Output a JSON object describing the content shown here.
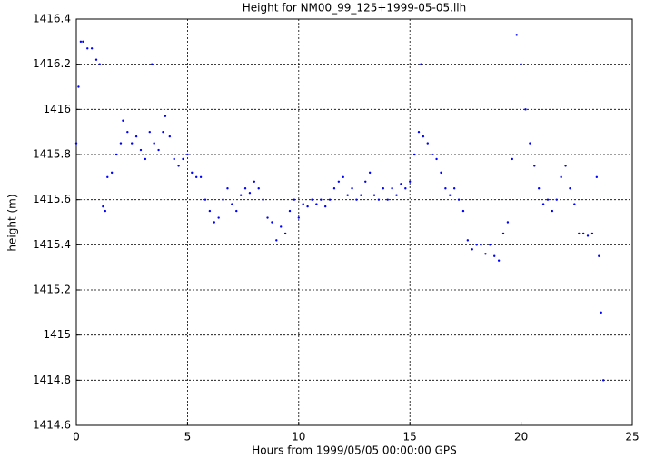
{
  "chart_data": {
    "type": "scatter",
    "title": "Height for NM00_99_125+1999-05-05.llh",
    "x_label": "Hours from 1999/05/05 00:00:00 GPS",
    "y_label": "height (m)",
    "xlim": [
      0,
      25
    ],
    "xticks": [
      0,
      5,
      10,
      15,
      20,
      25
    ],
    "ylim": [
      1414.6,
      1416.4
    ],
    "yticks": [
      1414.6,
      1414.8,
      1415,
      1415.2,
      1415.4,
      1415.6,
      1415.8,
      1416,
      1416.2,
      1416.4
    ],
    "grid": true,
    "series": [
      {
        "color": "#0000ff",
        "x": [
          0.0,
          0.1,
          0.2,
          0.3,
          0.5,
          0.7,
          0.9,
          1.05,
          1.2,
          1.3,
          1.4,
          1.6,
          1.8,
          2.0,
          2.1,
          2.3,
          2.5,
          2.7,
          2.9,
          3.1,
          3.3,
          3.4,
          3.5,
          3.7,
          3.9,
          4.0,
          4.2,
          4.4,
          4.6,
          4.8,
          5.0,
          5.2,
          5.4,
          5.6,
          5.8,
          6.0,
          6.2,
          6.4,
          6.6,
          6.8,
          7.0,
          7.2,
          7.4,
          7.6,
          7.8,
          8.0,
          8.2,
          8.4,
          8.6,
          8.8,
          9.0,
          9.2,
          9.4,
          9.6,
          9.8,
          10.0,
          10.2,
          10.4,
          10.6,
          10.8,
          11.0,
          11.2,
          11.4,
          11.6,
          11.8,
          12.0,
          12.2,
          12.4,
          12.6,
          12.8,
          13.0,
          13.2,
          13.4,
          13.6,
          13.8,
          14.0,
          14.2,
          14.4,
          14.6,
          14.8,
          15.0,
          15.2,
          15.4,
          15.5,
          15.6,
          15.8,
          16.0,
          16.2,
          16.4,
          16.6,
          16.8,
          17.0,
          17.2,
          17.4,
          17.6,
          17.8,
          18.0,
          18.2,
          18.4,
          18.6,
          18.8,
          19.0,
          19.2,
          19.4,
          19.6,
          19.8,
          20.0,
          20.2,
          20.4,
          20.6,
          20.8,
          21.0,
          21.2,
          21.4,
          21.6,
          21.8,
          22.0,
          22.2,
          22.4,
          22.6,
          22.8,
          23.0,
          23.2,
          23.4,
          23.5,
          23.6,
          23.7
        ],
        "values": [
          1415.85,
          1416.1,
          1416.3,
          1416.3,
          1416.27,
          1416.27,
          1416.22,
          1416.2,
          1415.57,
          1415.55,
          1415.7,
          1415.72,
          1415.8,
          1415.85,
          1415.95,
          1415.9,
          1415.85,
          1415.88,
          1415.82,
          1415.78,
          1415.9,
          1416.2,
          1415.85,
          1415.82,
          1415.9,
          1415.97,
          1415.88,
          1415.78,
          1415.75,
          1415.78,
          1415.8,
          1415.72,
          1415.7,
          1415.7,
          1415.6,
          1415.55,
          1415.5,
          1415.52,
          1415.6,
          1415.65,
          1415.58,
          1415.55,
          1415.62,
          1415.65,
          1415.63,
          1415.68,
          1415.65,
          1415.6,
          1415.52,
          1415.5,
          1415.42,
          1415.48,
          1415.45,
          1415.55,
          1415.6,
          1415.52,
          1415.58,
          1415.57,
          1415.6,
          1415.58,
          1415.6,
          1415.57,
          1415.6,
          1415.65,
          1415.68,
          1415.7,
          1415.62,
          1415.65,
          1415.6,
          1415.62,
          1415.68,
          1415.72,
          1415.62,
          1415.6,
          1415.65,
          1415.6,
          1415.65,
          1415.62,
          1415.67,
          1415.65,
          1415.68,
          1415.8,
          1415.9,
          1416.2,
          1415.88,
          1415.85,
          1415.8,
          1415.78,
          1415.72,
          1415.65,
          1415.62,
          1415.65,
          1415.6,
          1415.55,
          1415.42,
          1415.38,
          1415.4,
          1415.4,
          1415.36,
          1415.4,
          1415.35,
          1415.33,
          1415.45,
          1415.5,
          1415.78,
          1416.33,
          1416.2,
          1416.0,
          1415.85,
          1415.75,
          1415.65,
          1415.58,
          1415.6,
          1415.55,
          1415.6,
          1415.7,
          1415.75,
          1415.65,
          1415.58,
          1415.45,
          1415.45,
          1415.44,
          1415.45,
          1415.7,
          1415.35,
          1415.1,
          1414.8
        ]
      }
    ]
  }
}
